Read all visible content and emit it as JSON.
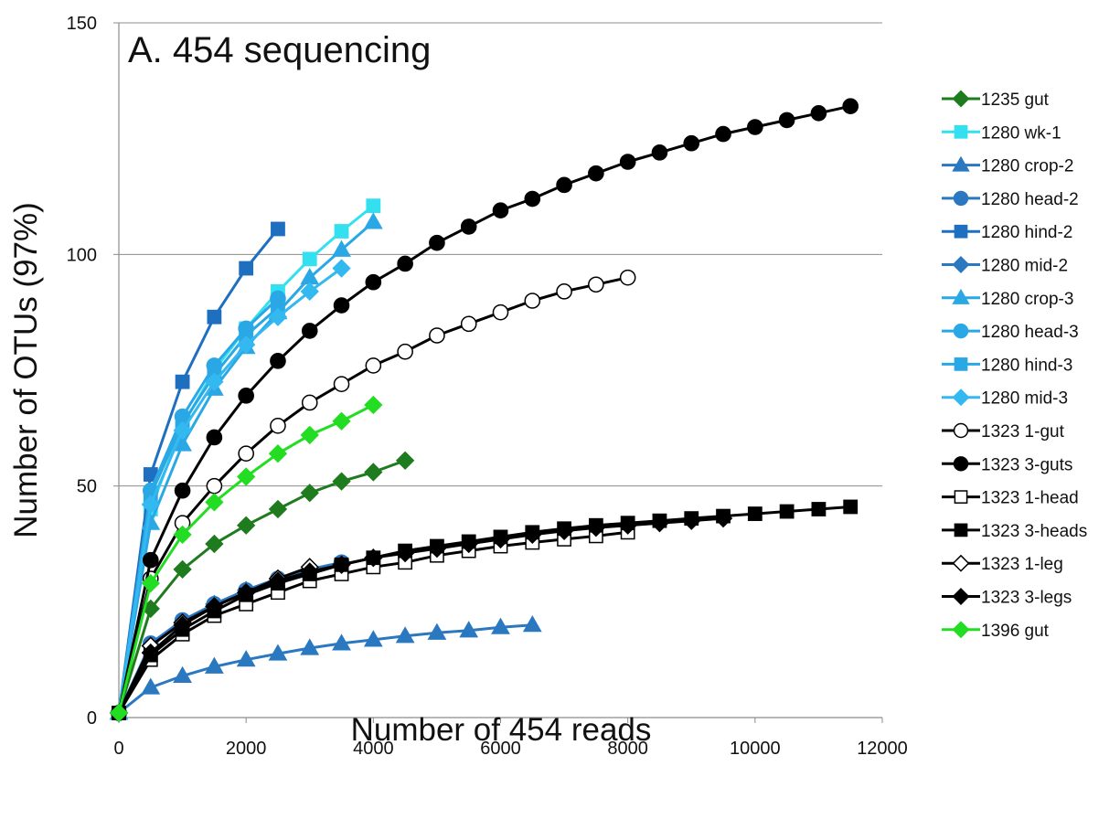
{
  "chart_data": {
    "type": "line",
    "title": "A. 454 sequencing",
    "xlabel": "Number of 454 reads",
    "ylabel": "Number of OTUs (97%)",
    "xlim": [
      0,
      12000
    ],
    "ylim": [
      0,
      150
    ],
    "x_ticks": [
      0,
      2000,
      4000,
      6000,
      8000,
      10000,
      12000
    ],
    "y_ticks": [
      0,
      50,
      100,
      150
    ],
    "grid": "horizontal",
    "legend_position": "right",
    "series": [
      {
        "name": "1235 gut",
        "color": "#1e7b1e",
        "marker": "diamond",
        "fill": "filled",
        "x": [
          0,
          500,
          1000,
          1500,
          2000,
          2500,
          3000,
          3500,
          4000,
          4500
        ],
        "y": [
          1,
          23.5,
          32,
          37.5,
          41.5,
          45,
          48.5,
          51,
          53,
          55.5
        ]
      },
      {
        "name": "1280 wk-1",
        "color": "#33e0f0",
        "marker": "square",
        "fill": "filled",
        "x": [
          0,
          500,
          1000,
          1500,
          2000,
          2500,
          3000,
          3500,
          4000
        ],
        "y": [
          1,
          45,
          63,
          75,
          84,
          92,
          99,
          105,
          110.5
        ]
      },
      {
        "name": "1280 crop-2",
        "color": "#2a78c0",
        "marker": "triangle",
        "fill": "filled",
        "x": [
          0,
          500,
          1000,
          1500,
          2000,
          2500,
          3000,
          3500,
          4000,
          4500,
          5000,
          5500,
          6000,
          6500
        ],
        "y": [
          1,
          6.5,
          9,
          11,
          12.5,
          13.8,
          15,
          16,
          16.8,
          17.6,
          18.3,
          18.8,
          19.5,
          20
        ]
      },
      {
        "name": "1280 head-2",
        "color": "#2a78c0",
        "marker": "circle",
        "fill": "filled",
        "x": [
          0,
          500,
          1000,
          1500,
          2000,
          2500,
          3000,
          3500
        ],
        "y": [
          1,
          16,
          21,
          24.5,
          27.5,
          30,
          32,
          33.5
        ]
      },
      {
        "name": "1280 hind-2",
        "color": "#1e6fc0",
        "marker": "square",
        "fill": "filled",
        "x": [
          0,
          500,
          1000,
          1500,
          2000,
          2500
        ],
        "y": [
          1,
          52.5,
          72.5,
          86.5,
          97,
          105.5
        ]
      },
      {
        "name": "1280 mid-2",
        "color": "#2a78c0",
        "marker": "diamond",
        "fill": "filled",
        "x": [
          0,
          500,
          1000,
          1500,
          2000,
          2500
        ],
        "y": [
          1,
          15.5,
          20.5,
          24.5,
          27.5,
          30
        ]
      },
      {
        "name": "1280 crop-3",
        "color": "#2aa8e6",
        "marker": "triangle",
        "fill": "filled",
        "x": [
          0,
          500,
          1000,
          1500,
          2000,
          2500,
          3000,
          3500,
          4000
        ],
        "y": [
          1,
          42,
          59,
          71,
          80,
          87.5,
          95,
          101,
          107
        ]
      },
      {
        "name": "1280 head-3",
        "color": "#2aa8e6",
        "marker": "circle",
        "fill": "filled",
        "x": [
          0,
          500,
          1000,
          1500,
          2000,
          2500
        ],
        "y": [
          1,
          49,
          65,
          76,
          84,
          90.5
        ]
      },
      {
        "name": "1280 hind-3",
        "color": "#2aa8e6",
        "marker": "square",
        "fill": "filled",
        "x": [
          0,
          500,
          1000,
          1500,
          2000,
          2500
        ],
        "y": [
          1,
          48,
          63.5,
          74,
          82.5,
          88.5
        ]
      },
      {
        "name": "1280 mid-3",
        "color": "#33b8f0",
        "marker": "diamond",
        "fill": "filled",
        "x": [
          0,
          500,
          1000,
          1500,
          2000,
          2500,
          3000,
          3500
        ],
        "y": [
          1,
          46,
          62,
          72.5,
          80.5,
          86.5,
          92,
          97
        ]
      },
      {
        "name": "1323 1-gut",
        "color": "#000000",
        "marker": "circle",
        "fill": "open",
        "x": [
          0,
          500,
          1000,
          1500,
          2000,
          2500,
          3000,
          3500,
          4000,
          4500,
          5000,
          5500,
          6000,
          6500,
          7000,
          7500,
          8000
        ],
        "y": [
          1,
          30,
          42,
          50,
          57,
          63,
          68,
          72,
          76,
          79,
          82.5,
          85,
          87.5,
          90,
          92,
          93.5,
          95
        ]
      },
      {
        "name": "1323 3-guts",
        "color": "#000000",
        "marker": "circle",
        "fill": "filled",
        "x": [
          0,
          500,
          1000,
          1500,
          2000,
          2500,
          3000,
          3500,
          4000,
          4500,
          5000,
          5500,
          6000,
          6500,
          7000,
          7500,
          8000,
          8500,
          9000,
          9500,
          10000,
          10500,
          11000,
          11500
        ],
        "y": [
          1,
          34,
          49,
          60.5,
          69.5,
          77,
          83.5,
          89,
          94,
          98,
          102.5,
          106,
          109.5,
          112,
          115,
          117.5,
          120,
          122,
          124,
          126,
          127.5,
          129,
          130.5,
          132
        ]
      },
      {
        "name": "1323 1-head",
        "color": "#000000",
        "marker": "square",
        "fill": "open",
        "x": [
          0,
          500,
          1000,
          1500,
          2000,
          2500,
          3000,
          3500,
          4000,
          4500,
          5000,
          5500,
          6000,
          6500,
          7000,
          7500,
          8000
        ],
        "y": [
          1,
          12.5,
          18,
          22,
          24.5,
          27,
          29.5,
          31,
          32.5,
          33.5,
          35,
          36,
          37,
          37.8,
          38.5,
          39.2,
          40
        ]
      },
      {
        "name": "1323 3-heads",
        "color": "#000000",
        "marker": "square",
        "fill": "filled",
        "x": [
          0,
          500,
          1000,
          1500,
          2000,
          2500,
          3000,
          3500,
          4000,
          4500,
          5000,
          5500,
          6000,
          6500,
          7000,
          7500,
          8000,
          8500,
          9000,
          9500,
          10000,
          10500,
          11000,
          11500
        ],
        "y": [
          1,
          13.5,
          19,
          23,
          26.5,
          29,
          31,
          33,
          34.5,
          36,
          37,
          38,
          39,
          40,
          40.8,
          41.5,
          42,
          42.5,
          43,
          43.5,
          44,
          44.5,
          45,
          45.5
        ]
      },
      {
        "name": "1323 1-leg",
        "color": "#000000",
        "marker": "diamond",
        "fill": "open",
        "x": [
          0,
          500,
          1000,
          1500,
          2000,
          2500,
          3000
        ],
        "y": [
          1,
          15.5,
          20.5,
          24,
          27,
          30,
          32.5
        ]
      },
      {
        "name": "1323 3-legs",
        "color": "#000000",
        "marker": "diamond",
        "fill": "filled",
        "x": [
          0,
          500,
          1000,
          1500,
          2000,
          2500,
          3000,
          3500,
          4000,
          4500,
          5000,
          5500,
          6000,
          6500,
          7000,
          7500,
          8000,
          8500,
          9000,
          9500
        ],
        "y": [
          1,
          14,
          20,
          24,
          27,
          29.5,
          31.5,
          33,
          34.5,
          35.5,
          36.5,
          37.5,
          38.5,
          39.5,
          40.3,
          41,
          41.5,
          42,
          42.5,
          43
        ]
      },
      {
        "name": "1396 gut",
        "color": "#22dd22",
        "marker": "diamond",
        "fill": "filled",
        "x": [
          0,
          500,
          1000,
          1500,
          2000,
          2500,
          3000,
          3500,
          4000
        ],
        "y": [
          1,
          29,
          39.5,
          46.5,
          52,
          57,
          61,
          64,
          67.5
        ]
      }
    ]
  }
}
